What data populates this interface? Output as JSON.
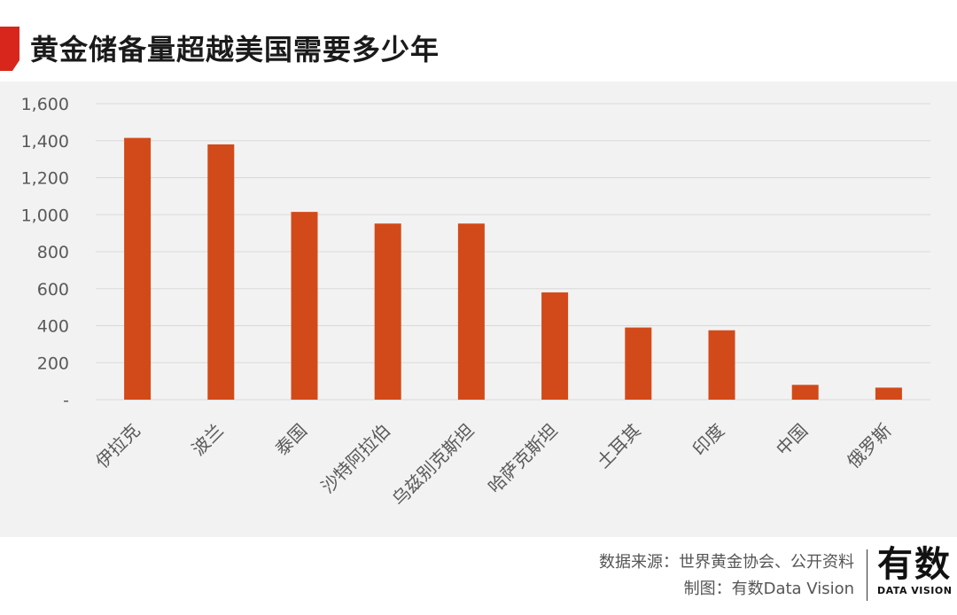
{
  "title": "黄金储备量超越美国需要多少年",
  "colors": {
    "bar": "#d24a1a",
    "accent": "#d9261c",
    "grid": "#d9d9d9",
    "panel": "#f2f2f2"
  },
  "chart_data": {
    "type": "bar",
    "title": "黄金储备量超越美国需要多少年",
    "categories": [
      "伊拉克",
      "波兰",
      "泰国",
      "沙特阿拉伯",
      "乌兹别克斯坦",
      "哈萨克斯坦",
      "土耳其",
      "印度",
      "中国",
      "俄罗斯"
    ],
    "values": [
      1415,
      1380,
      1015,
      952,
      952,
      580,
      390,
      375,
      80,
      65
    ],
    "ylim": [
      0,
      1600
    ],
    "yticks": [
      0,
      200,
      400,
      600,
      800,
      1000,
      1200,
      1400,
      1600
    ],
    "ytick_labels": [
      "-",
      "200",
      "400",
      "600",
      "800",
      "1,000",
      "1,200",
      "1,400",
      "1,600"
    ],
    "grid": true,
    "xlabel": "",
    "ylabel": ""
  },
  "footer": {
    "source": "数据来源：世界黄金协会、公开资料",
    "made_by": "制图：有数Data Vision",
    "logo_cn": "有数",
    "logo_en": "DATA VISION"
  }
}
